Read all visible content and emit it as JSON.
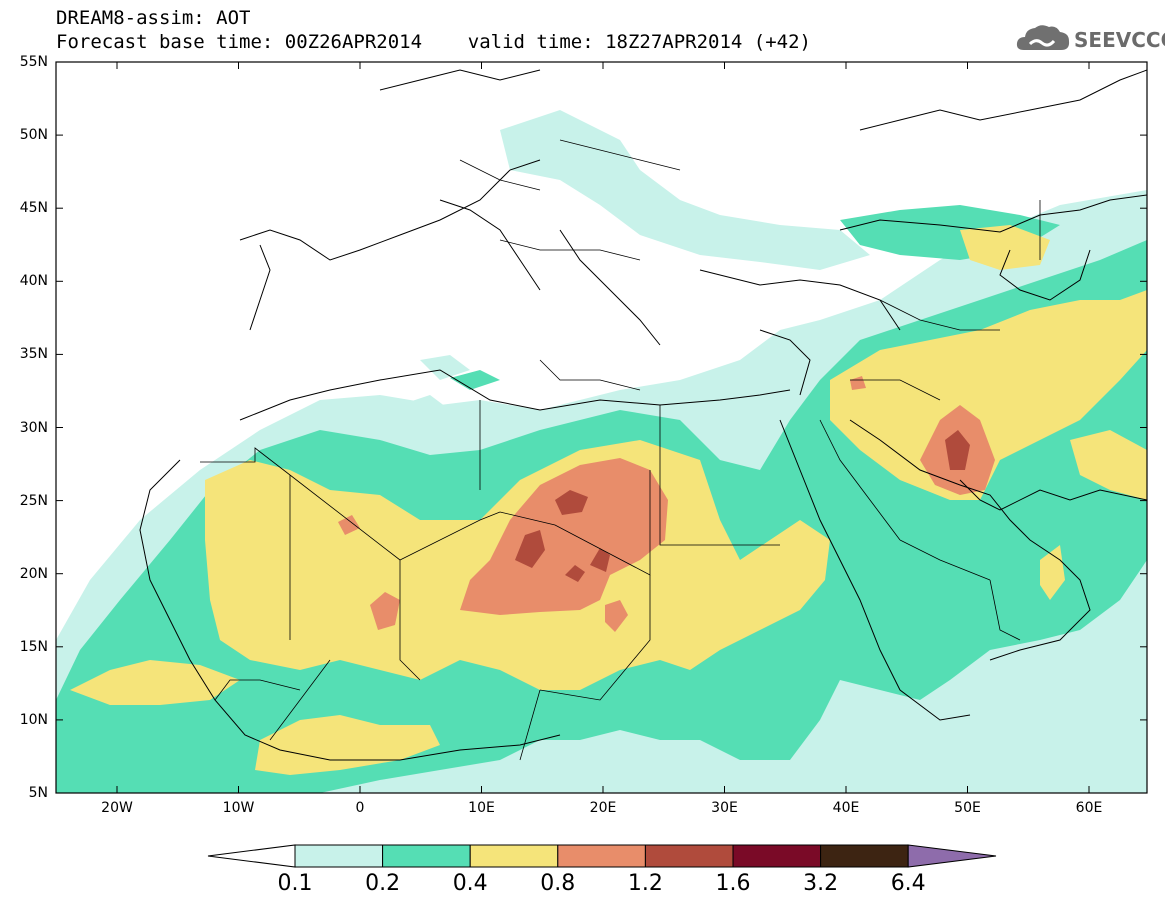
{
  "header": {
    "line1": "DREAM8-assim: AOT",
    "line2": "Forecast base time: 00Z26APR2014    valid time: 18Z27APR2014 (+42)"
  },
  "logo": {
    "text": "SEEVCCC",
    "icon": "cloud-icon"
  },
  "map": {
    "lat_labels": [
      "55N",
      "50N",
      "45N",
      "40N",
      "35N",
      "30N",
      "25N",
      "20N",
      "15N",
      "10N",
      "5N"
    ],
    "lon_labels": [
      "20W",
      "10W",
      "0",
      "10E",
      "20E",
      "30E",
      "40E",
      "50E",
      "60E"
    ]
  },
  "colorbar": {
    "levels": [
      "0.1",
      "0.2",
      "0.4",
      "0.8",
      "1.2",
      "1.6",
      "3.2",
      "6.4"
    ],
    "colors": [
      "#ffffff",
      "#c8f2ea",
      "#55deb4",
      "#f5e47a",
      "#e88d6a",
      "#b04b3c",
      "#7a0a27",
      "#3d2412",
      "#8e6cab"
    ]
  }
}
